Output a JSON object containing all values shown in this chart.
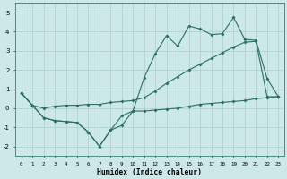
{
  "xlabel": "Humidex (Indice chaleur)",
  "bg_color": "#cce8e8",
  "line_color": "#2a7060",
  "grid_color": "#aacece",
  "x_values": [
    0,
    1,
    2,
    3,
    4,
    5,
    6,
    7,
    8,
    9,
    10,
    11,
    12,
    13,
    14,
    15,
    16,
    17,
    18,
    19,
    20,
    21,
    22,
    23
  ],
  "line1": [
    0.8,
    0.15,
    -0.5,
    -0.65,
    -0.7,
    -0.75,
    -1.25,
    -2.0,
    -1.15,
    -0.9,
    -0.15,
    1.6,
    2.85,
    3.8,
    3.25,
    4.3,
    4.15,
    3.85,
    3.9,
    4.75,
    3.6,
    3.55,
    1.55,
    0.6
  ],
  "line2": [
    0.8,
    0.15,
    -0.5,
    -0.65,
    -0.7,
    -0.75,
    -1.25,
    -2.0,
    -1.15,
    -0.4,
    -0.15,
    -0.15,
    -0.1,
    -0.05,
    0.0,
    0.1,
    0.2,
    0.25,
    0.3,
    0.35,
    0.4,
    0.5,
    0.55,
    0.6
  ],
  "line3": [
    0.8,
    0.15,
    0.0,
    0.1,
    0.15,
    0.15,
    0.2,
    0.2,
    0.3,
    0.35,
    0.4,
    0.55,
    0.9,
    1.3,
    1.65,
    2.0,
    2.3,
    2.6,
    2.9,
    3.2,
    3.45,
    3.5,
    0.6,
    0.6
  ],
  "ylim": [
    -2.5,
    5.5
  ],
  "xlim": [
    -0.5,
    23.5
  ],
  "yticks": [
    -2,
    -1,
    0,
    1,
    2,
    3,
    4,
    5
  ]
}
